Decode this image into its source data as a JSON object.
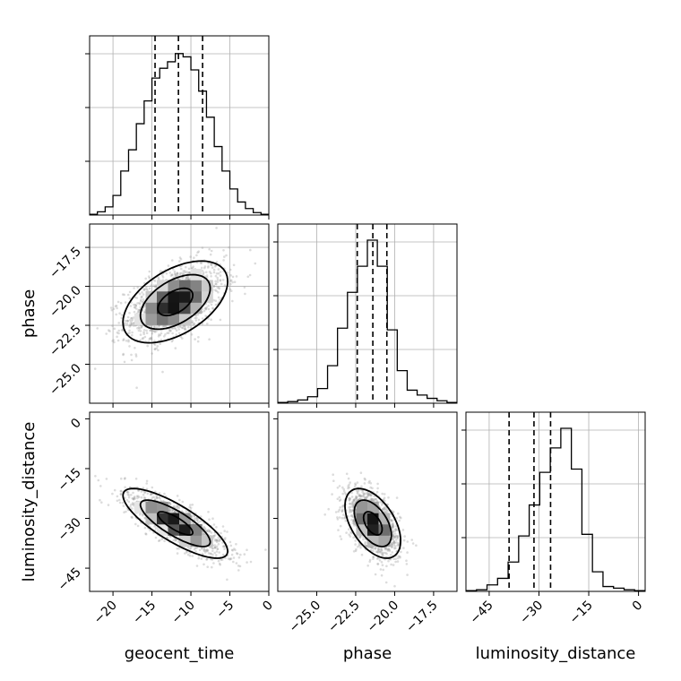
{
  "chart_data": {
    "type": "corner",
    "parameters": [
      {
        "name": "geocent_time",
        "label": "geocent_time",
        "range": [
          -23,
          0
        ],
        "ticks": [
          -20,
          -15,
          -10,
          -5,
          0
        ],
        "tick_labels": [
          "−20",
          "−15",
          "−10",
          "−5",
          "0"
        ],
        "quantiles": [
          -14.6,
          -11.6,
          -8.5
        ],
        "histogram": [
          0.005,
          0.02,
          0.05,
          0.12,
          0.27,
          0.4,
          0.56,
          0.7,
          0.84,
          0.9,
          0.94,
          0.99,
          0.97,
          0.89,
          0.76,
          0.6,
          0.42,
          0.27,
          0.16,
          0.08,
          0.04,
          0.015,
          0.005
        ]
      },
      {
        "name": "phase",
        "label": "phase",
        "range": [
          -27.5,
          -16.0
        ],
        "ticks": [
          -25.0,
          -22.5,
          -20.0,
          -17.5
        ],
        "tick_labels": [
          "−25.0",
          "−22.5",
          "−20.0",
          "−17.5"
        ],
        "quantiles": [
          -22.4,
          -21.4,
          -20.5
        ],
        "histogram": [
          0.005,
          0.01,
          0.02,
          0.04,
          0.09,
          0.23,
          0.46,
          0.68,
          0.84,
          1.0,
          0.84,
          0.45,
          0.2,
          0.08,
          0.05,
          0.03,
          0.015,
          0.005
        ]
      },
      {
        "name": "luminosity_distance",
        "label": "luminosity_distance",
        "range": [
          -52,
          2
        ],
        "ticks": [
          -45,
          -30,
          -15,
          0
        ],
        "tick_labels": [
          "−45",
          "−30",
          "−15",
          "0"
        ],
        "quantiles": [
          -39.0,
          -31.5,
          -26.5
        ],
        "histogram": [
          0.005,
          0.01,
          0.04,
          0.08,
          0.18,
          0.34,
          0.53,
          0.73,
          0.88,
          1.0,
          0.75,
          0.35,
          0.12,
          0.03,
          0.02,
          0.01,
          0.005
        ]
      }
    ],
    "pairs": [
      {
        "x": "geocent_time",
        "y": "phase",
        "center": [
          -12.0,
          -21.0
        ],
        "std": [
          3.2,
          1.25
        ],
        "correlation": 0.5,
        "grid": true
      },
      {
        "x": "geocent_time",
        "y": "luminosity_distance",
        "center": [
          -12.0,
          -31.5
        ],
        "std": [
          3.2,
          5.0
        ],
        "correlation": -0.8,
        "grid": false
      },
      {
        "x": "phase",
        "y": "luminosity_distance",
        "center": [
          -21.4,
          -31.5
        ],
        "std": [
          0.85,
          5.0
        ],
        "correlation": -0.5,
        "grid": false
      }
    ],
    "grid": true
  }
}
